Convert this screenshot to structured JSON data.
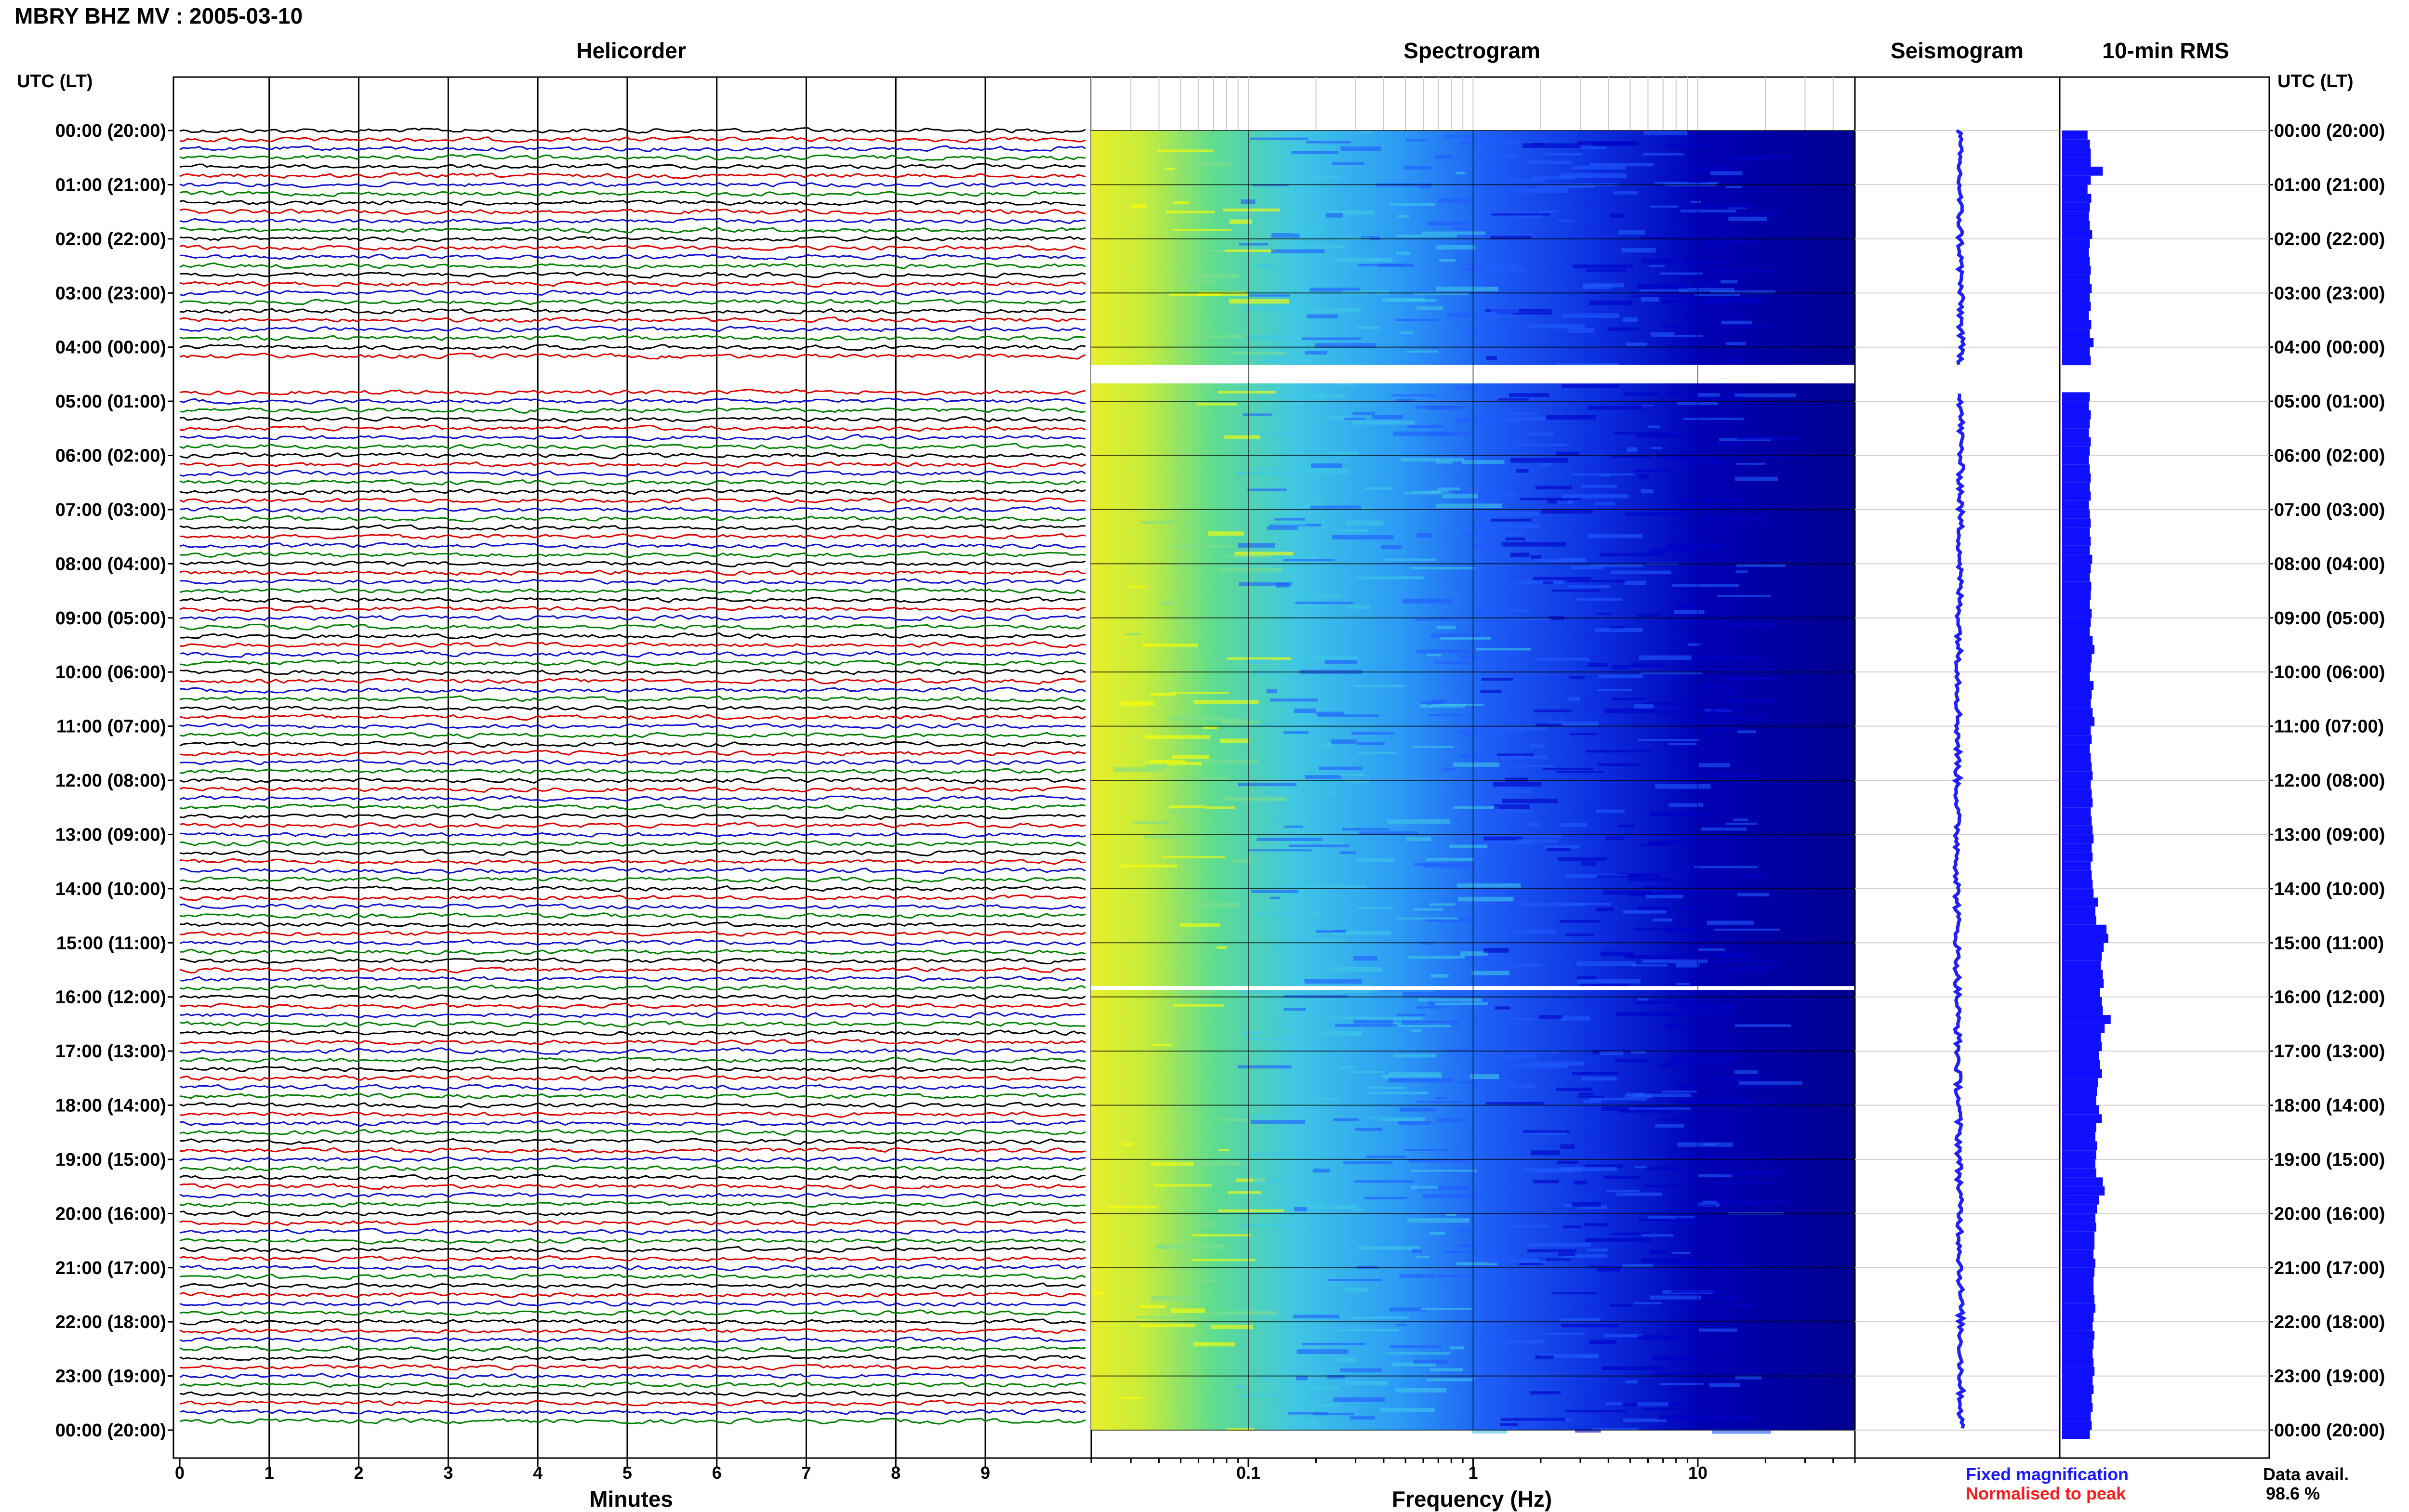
{
  "header": {
    "title": "MBRY BHZ MV : 2005-03-10"
  },
  "panels": {
    "helicorder": "Helicorder",
    "spectrogram": "Spectrogram",
    "seismogram": "Seismogram",
    "rms": "10-min RMS"
  },
  "time_axis": {
    "header_left": "UTC (LT)",
    "header_right": "UTC (LT)",
    "labels": [
      "00:00 (20:00)",
      "01:00 (21:00)",
      "02:00 (22:00)",
      "03:00 (23:00)",
      "04:00 (00:00)",
      "05:00 (01:00)",
      "06:00 (02:00)",
      "07:00 (03:00)",
      "08:00 (04:00)",
      "09:00 (05:00)",
      "10:00 (06:00)",
      "11:00 (07:00)",
      "12:00 (08:00)",
      "13:00 (09:00)",
      "14:00 (10:00)",
      "15:00 (11:00)",
      "16:00 (12:00)",
      "17:00 (13:00)",
      "18:00 (14:00)",
      "19:00 (15:00)",
      "20:00 (16:00)",
      "21:00 (17:00)",
      "22:00 (18:00)",
      "23:00 (19:00)",
      "00:00 (20:00)"
    ]
  },
  "helicorder_axis": {
    "title": "Minutes",
    "ticks": [
      "0",
      "1",
      "2",
      "3",
      "4",
      "5",
      "6",
      "7",
      "8",
      "9"
    ]
  },
  "spectrogram_axis": {
    "title": "Frequency (Hz)",
    "ticks": [
      "0.1",
      "1",
      "10"
    ],
    "scale": "log"
  },
  "legend": {
    "fixed": "Fixed magnification",
    "normalised": "Normalised to peak",
    "fixed_color": "#1a1aff",
    "normalised_color": "#ff1a1a"
  },
  "availability": {
    "label": "Data avail.",
    "value": "98.6 %"
  },
  "chart_data": {
    "type": "heatmap",
    "description_units": "hours UTC",
    "helicorder": {
      "rows_per_hour": 6,
      "minutes_per_row": 10,
      "trace_colors": [
        "#000000",
        "#e00000",
        "#1010d0",
        "#008000"
      ],
      "data_gaps_hours": [
        [
          4.33,
          4.83
        ],
        [
          15.8,
          15.85
        ]
      ]
    },
    "spectrogram": {
      "freq_min_hz": 0.02,
      "freq_max_hz": 50,
      "colormap": [
        "#00007a",
        "#0000c8",
        "#1f5cff",
        "#3ec8e8",
        "#7de08a",
        "#ffff00"
      ],
      "gaps_hours": [
        [
          4.33,
          4.67
        ],
        [
          15.8,
          15.85
        ]
      ]
    },
    "rms_10min": {
      "bar_color": "#1010ff",
      "values": [
        0.55,
        0.6,
        0.62,
        0.62,
        0.88,
        0.62,
        0.55,
        0.63,
        0.6,
        0.58,
        0.6,
        0.65,
        0.6,
        0.58,
        0.6,
        0.62,
        0.6,
        0.64,
        0.6,
        0.62,
        0.58,
        0.63,
        0.6,
        0.68,
        0.6,
        0.62,
        null,
        null,
        null,
        0.6,
        0.58,
        0.62,
        0.6,
        0.58,
        0.62,
        0.6,
        0.58,
        0.6,
        0.62,
        0.6,
        0.62,
        0.58,
        0.6,
        0.62,
        0.6,
        0.62,
        0.6,
        0.65,
        0.62,
        0.6,
        0.63,
        0.62,
        0.6,
        0.64,
        0.62,
        0.6,
        0.66,
        0.7,
        0.64,
        0.62,
        0.6,
        0.68,
        0.64,
        0.62,
        0.66,
        0.7,
        0.62,
        0.64,
        0.6,
        0.62,
        0.64,
        0.66,
        0.62,
        0.64,
        0.66,
        0.62,
        0.64,
        0.66,
        0.68,
        0.64,
        0.66,
        0.62,
        0.64,
        0.66,
        0.68,
        0.78,
        0.72,
        0.74,
        0.96,
        1.0,
        0.9,
        0.86,
        0.84,
        0.88,
        0.9,
        0.82,
        0.86,
        0.88,
        1.05,
        0.92,
        0.84,
        0.86,
        0.8,
        0.82,
        0.86,
        0.78,
        0.76,
        0.74,
        0.8,
        0.86,
        0.74,
        0.72,
        0.76,
        0.74,
        0.72,
        0.74,
        0.88,
        0.92,
        0.8,
        0.76,
        0.72,
        0.74,
        0.7,
        0.7,
        0.68,
        0.72,
        0.7,
        0.68,
        0.68,
        0.7,
        0.72,
        0.68,
        0.66,
        0.7,
        0.68,
        0.66,
        0.68,
        0.7,
        0.66,
        0.68,
        0.64,
        0.66,
        0.62,
        0.64,
        0.6
      ]
    }
  }
}
